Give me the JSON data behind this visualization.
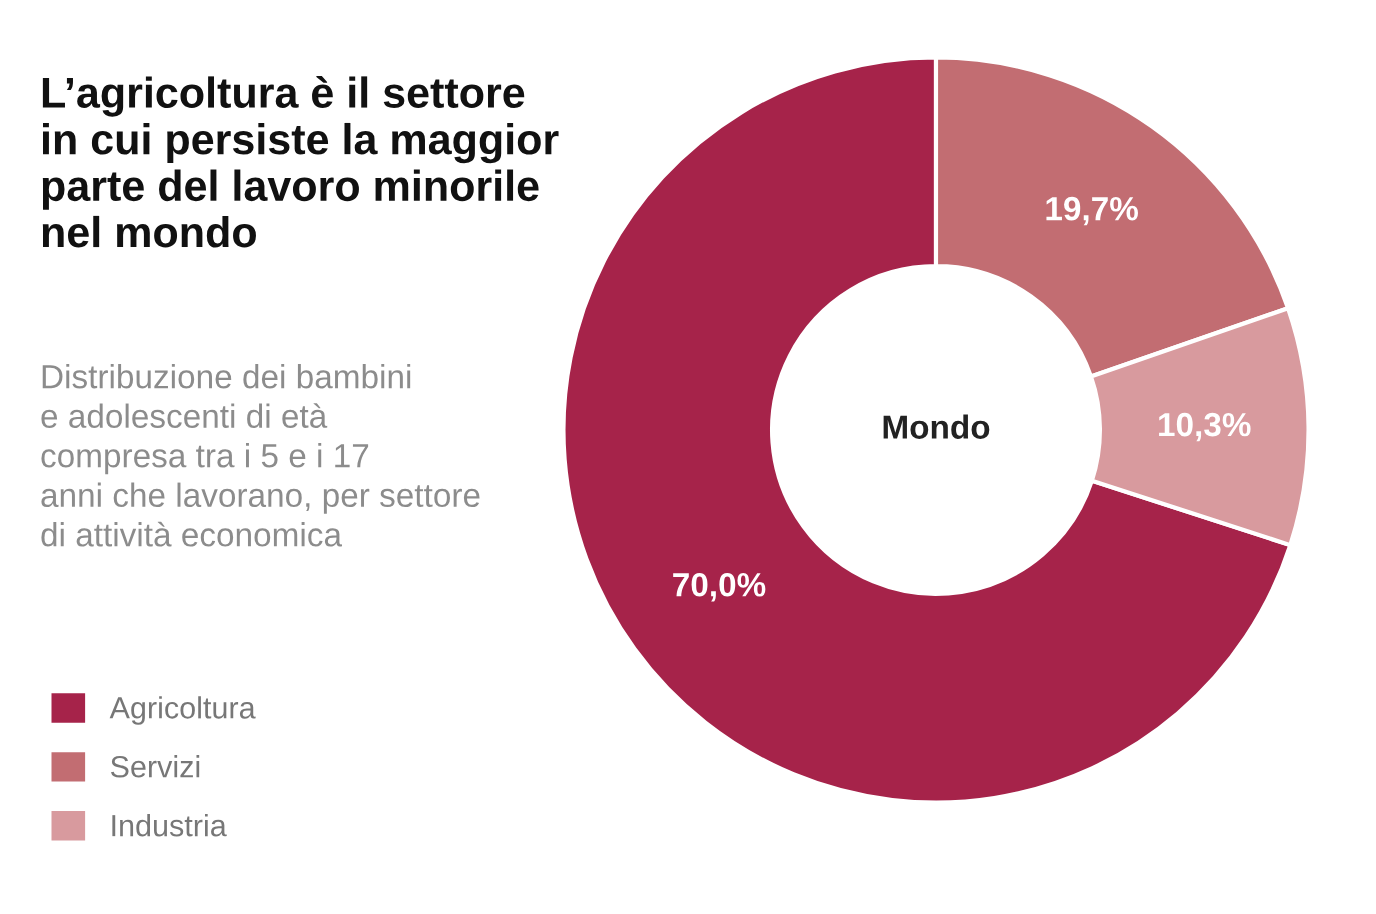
{
  "chart_data": {
    "type": "donut",
    "title": "L’agricoltura è il settore\nin cui persiste la maggior\nparte del lavoro minorile\nnel mondo",
    "subtitle": "Distribuzione dei bambini\ne adolescenti di età\ncompresa tra i 5 e i 17\nanni che lavorano, per settore\ndi attività economica",
    "categories": [
      "Agricoltura",
      "Servizi",
      "Industria"
    ],
    "values": [
      70.0,
      19.7,
      10.3
    ],
    "colors": [
      "#a6234a",
      "#c26d72",
      "#d89a9e"
    ],
    "value_labels": [
      "70,0%",
      "19,7%",
      "10,3%"
    ],
    "annotations": [
      "Mondo"
    ],
    "legend": "bottom left"
  }
}
